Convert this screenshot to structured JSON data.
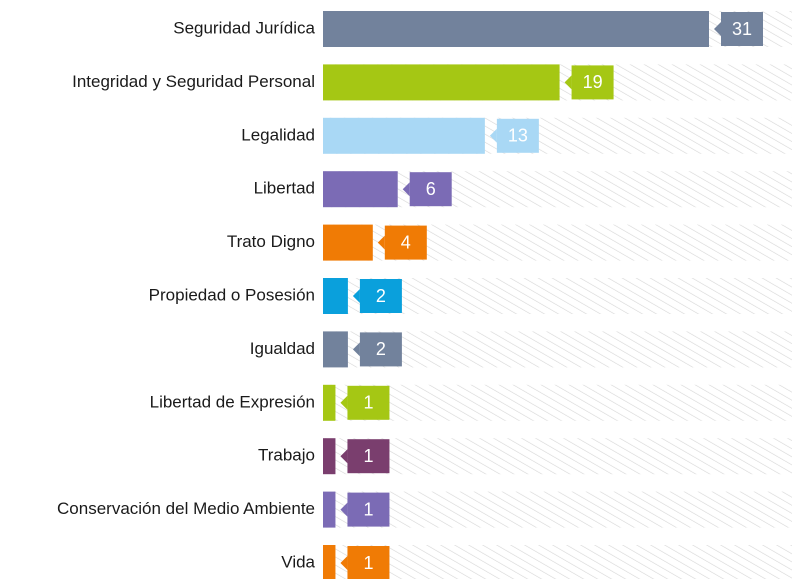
{
  "chart_data": {
    "type": "bar",
    "orientation": "horizontal",
    "categories": [
      "Seguridad Jurídica",
      "Integridad y Seguridad Personal",
      "Legalidad",
      "Libertad",
      "Trato Digno",
      "Propiedad o Posesión",
      "Igualdad",
      "Libertad de Expresión",
      "Trabajo",
      "Conservación del Medio Ambiente",
      "Vida"
    ],
    "values": [
      31,
      19,
      13,
      6,
      4,
      2,
      2,
      1,
      1,
      1,
      1
    ],
    "colors": [
      "#72829c",
      "#a5c714",
      "#a9d8f5",
      "#7b6bb5",
      "#f07b05",
      "#0aa0dc",
      "#72829c",
      "#a5c714",
      "#7a3e6e",
      "#7b6bb5",
      "#f07b05"
    ]
  }
}
